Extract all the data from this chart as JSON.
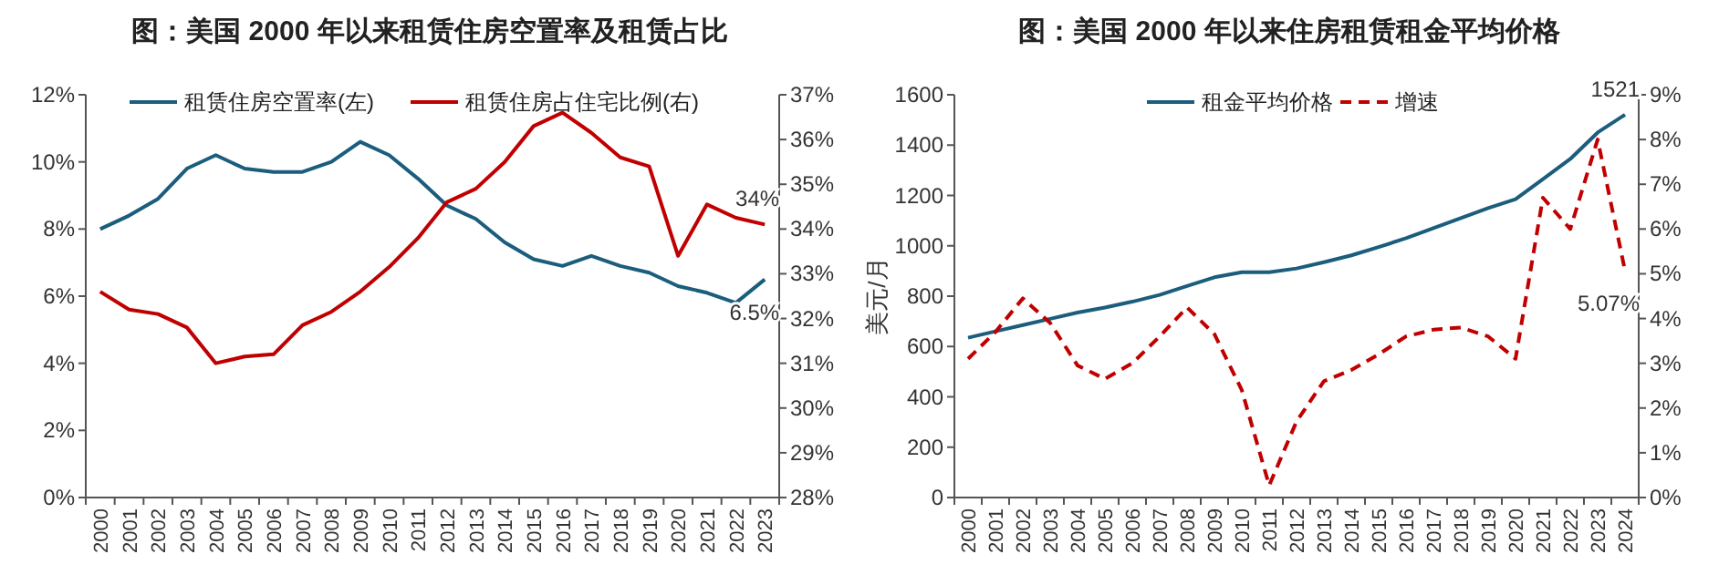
{
  "chart_data": [
    {
      "type": "line",
      "title": "图：美国 2000 年以来租赁住房空置率及租赁占比",
      "legend": "top",
      "grid": false,
      "categories": [
        "2000",
        "2001",
        "2002",
        "2003",
        "2004",
        "2005",
        "2006",
        "2007",
        "2008",
        "2009",
        "2010",
        "2011",
        "2012",
        "2013",
        "2014",
        "2015",
        "2016",
        "2017",
        "2018",
        "2019",
        "2020",
        "2021",
        "2022",
        "2023"
      ],
      "ylim": [
        0,
        12
      ],
      "yticks": [
        {
          "value": 0,
          "label": "0%"
        },
        {
          "value": 2,
          "label": "2%"
        },
        {
          "value": 4,
          "label": "4%"
        },
        {
          "value": 6,
          "label": "6%"
        },
        {
          "value": 8,
          "label": "8%"
        },
        {
          "value": 10,
          "label": "10%"
        },
        {
          "value": 12,
          "label": "12%"
        }
      ],
      "y2lim": [
        28,
        37
      ],
      "y2ticks": [
        {
          "value": 28,
          "label": "28%"
        },
        {
          "value": 29,
          "label": "29%"
        },
        {
          "value": 30,
          "label": "30%"
        },
        {
          "value": 31,
          "label": "31%"
        },
        {
          "value": 32,
          "label": "32%"
        },
        {
          "value": 33,
          "label": "33%"
        },
        {
          "value": 34,
          "label": "34%"
        },
        {
          "value": 35,
          "label": "35%"
        },
        {
          "value": 36,
          "label": "36%"
        },
        {
          "value": 37,
          "label": "37%"
        }
      ],
      "series": [
        {
          "name": "租赁住房空置率(左)",
          "color": "#1b5d7d",
          "line_style": "solid",
          "values": [
            8.0,
            8.4,
            8.9,
            9.8,
            10.2,
            9.8,
            9.7,
            9.7,
            10.0,
            10.6,
            10.2,
            9.5,
            8.7,
            8.3,
            7.6,
            7.1,
            6.9,
            7.2,
            6.9,
            6.7,
            6.3,
            6.1,
            5.8,
            6.5
          ],
          "value_labels": [
            null,
            null,
            null,
            null,
            null,
            null,
            null,
            null,
            null,
            null,
            null,
            null,
            null,
            null,
            null,
            null,
            null,
            null,
            null,
            null,
            null,
            null,
            null,
            "6.5%"
          ]
        },
        {
          "name": "租赁住房占住宅比例(右)",
          "color": "#c00000",
          "line_style": "solid",
          "axis": "y2",
          "values": [
            32.6,
            32.2,
            32.1,
            31.8,
            31.0,
            31.15,
            31.2,
            31.85,
            32.15,
            32.6,
            33.15,
            33.8,
            34.6,
            34.9,
            35.5,
            36.3,
            36.6,
            36.15,
            35.6,
            35.4,
            33.4,
            34.55,
            34.25,
            34.1
          ],
          "value_labels": [
            null,
            null,
            null,
            null,
            null,
            null,
            null,
            null,
            null,
            null,
            null,
            null,
            null,
            null,
            null,
            null,
            null,
            null,
            null,
            null,
            null,
            null,
            null,
            "34%"
          ]
        }
      ]
    },
    {
      "type": "line",
      "title": "图：美国 2000 年以来住房租赁租金平均价格",
      "ylabel": "美元/月",
      "legend": "top",
      "grid": false,
      "categories": [
        "2000",
        "2001",
        "2002",
        "2003",
        "2004",
        "2005",
        "2006",
        "2007",
        "2008",
        "2009",
        "2010",
        "2011",
        "2012",
        "2013",
        "2014",
        "2015",
        "2016",
        "2017",
        "2018",
        "2019",
        "2020",
        "2021",
        "2022",
        "2023",
        "2024"
      ],
      "ylim": [
        0,
        1600
      ],
      "yticks": [
        0,
        200,
        400,
        600,
        800,
        1000,
        1200,
        1400,
        1600
      ],
      "y2lim": [
        0,
        9
      ],
      "y2ticks": [
        {
          "value": 0,
          "label": "0%"
        },
        {
          "value": 1,
          "label": "1%"
        },
        {
          "value": 2,
          "label": "2%"
        },
        {
          "value": 3,
          "label": "3%"
        },
        {
          "value": 4,
          "label": "4%"
        },
        {
          "value": 5,
          "label": "5%"
        },
        {
          "value": 6,
          "label": "6%"
        },
        {
          "value": 7,
          "label": "7%"
        },
        {
          "value": 8,
          "label": "8%"
        },
        {
          "value": 9,
          "label": "9%"
        }
      ],
      "series": [
        {
          "name": "租金平均价格",
          "color": "#1b5d7d",
          "line_style": "solid",
          "values": [
            635,
            660,
            685,
            710,
            735,
            755,
            778,
            805,
            840,
            875,
            895,
            895,
            910,
            935,
            962,
            995,
            1030,
            1070,
            1110,
            1150,
            1185,
            1265,
            1345,
            1450,
            1521
          ],
          "value_labels": [
            null,
            null,
            null,
            null,
            null,
            null,
            null,
            null,
            null,
            null,
            null,
            null,
            null,
            null,
            null,
            null,
            null,
            null,
            null,
            null,
            null,
            null,
            null,
            null,
            "1521"
          ]
        },
        {
          "name": "增速",
          "color": "#c00000",
          "line_style": "dashed",
          "axis": "y2",
          "values": [
            3.1,
            3.7,
            4.45,
            3.9,
            2.95,
            2.65,
            3.0,
            3.6,
            4.25,
            3.65,
            2.4,
            0.27,
            1.7,
            2.6,
            2.85,
            3.2,
            3.6,
            3.75,
            3.8,
            3.6,
            3.1,
            6.7,
            6.0,
            8.0,
            5.07
          ],
          "value_labels": [
            null,
            null,
            null,
            null,
            null,
            null,
            null,
            null,
            null,
            null,
            null,
            null,
            null,
            null,
            null,
            null,
            null,
            null,
            null,
            null,
            null,
            null,
            null,
            null,
            "5.07%"
          ]
        }
      ]
    }
  ]
}
